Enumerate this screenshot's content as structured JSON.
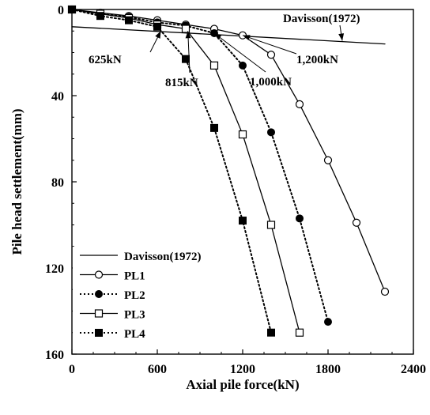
{
  "chart_data": {
    "type": "line",
    "title": "",
    "xlabel": "Axial pile force(kN)",
    "ylabel": "Pile head settlement(mm)",
    "xlim": [
      0,
      2400
    ],
    "ylim": [
      0,
      160
    ],
    "y_inverted": true,
    "x_ticks": [
      "0",
      "600",
      "1200",
      "1800",
      "2400"
    ],
    "y_ticks": [
      "0",
      "40",
      "80",
      "120",
      "160"
    ],
    "grid": false,
    "legend_position": "bottom-left",
    "series": [
      {
        "name": "Davisson(1972)",
        "style": "solid",
        "marker": "none",
        "x": [
          0,
          2200
        ],
        "y": [
          8,
          16
        ]
      },
      {
        "name": "PL1",
        "style": "solid",
        "marker": "open-circle",
        "x": [
          0,
          200,
          400,
          600,
          800,
          1000,
          1200,
          1400,
          1600,
          1800,
          2000,
          2200
        ],
        "y": [
          0,
          1.5,
          3,
          5,
          7,
          9,
          12,
          21,
          44,
          70,
          99,
          131
        ]
      },
      {
        "name": "PL2",
        "style": "dotted",
        "marker": "filled-circle",
        "x": [
          0,
          200,
          400,
          600,
          800,
          1000,
          1200,
          1400,
          1600,
          1800
        ],
        "y": [
          0,
          2,
          3.5,
          6,
          7.5,
          11,
          26,
          57,
          97,
          145
        ]
      },
      {
        "name": "PL3",
        "style": "solid",
        "marker": "open-square",
        "x": [
          0,
          200,
          400,
          600,
          800,
          1000,
          1200,
          1400,
          1600
        ],
        "y": [
          0,
          2,
          4,
          7,
          9,
          26,
          58,
          100,
          150
        ]
      },
      {
        "name": "PL4",
        "style": "dotted",
        "marker": "filled-square",
        "x": [
          0,
          200,
          400,
          600,
          800,
          1000,
          1200,
          1400
        ],
        "y": [
          0,
          3,
          5,
          8,
          23,
          55,
          98,
          150
        ]
      }
    ],
    "annotations": [
      {
        "id": "davisson",
        "text": "Davisson(1972)",
        "arrow_to": [
          1900,
          14.5
        ]
      },
      {
        "id": "a625",
        "text": "625kN",
        "arrow_to": [
          625,
          10
        ]
      },
      {
        "id": "a815",
        "text": "815kN",
        "arrow_to": [
          815,
          10
        ]
      },
      {
        "id": "a1000",
        "text": "1,000kN",
        "arrow_to": [
          1000,
          11
        ]
      },
      {
        "id": "a1200",
        "text": "1,200kN",
        "arrow_to": [
          1200,
          12
        ]
      }
    ]
  }
}
